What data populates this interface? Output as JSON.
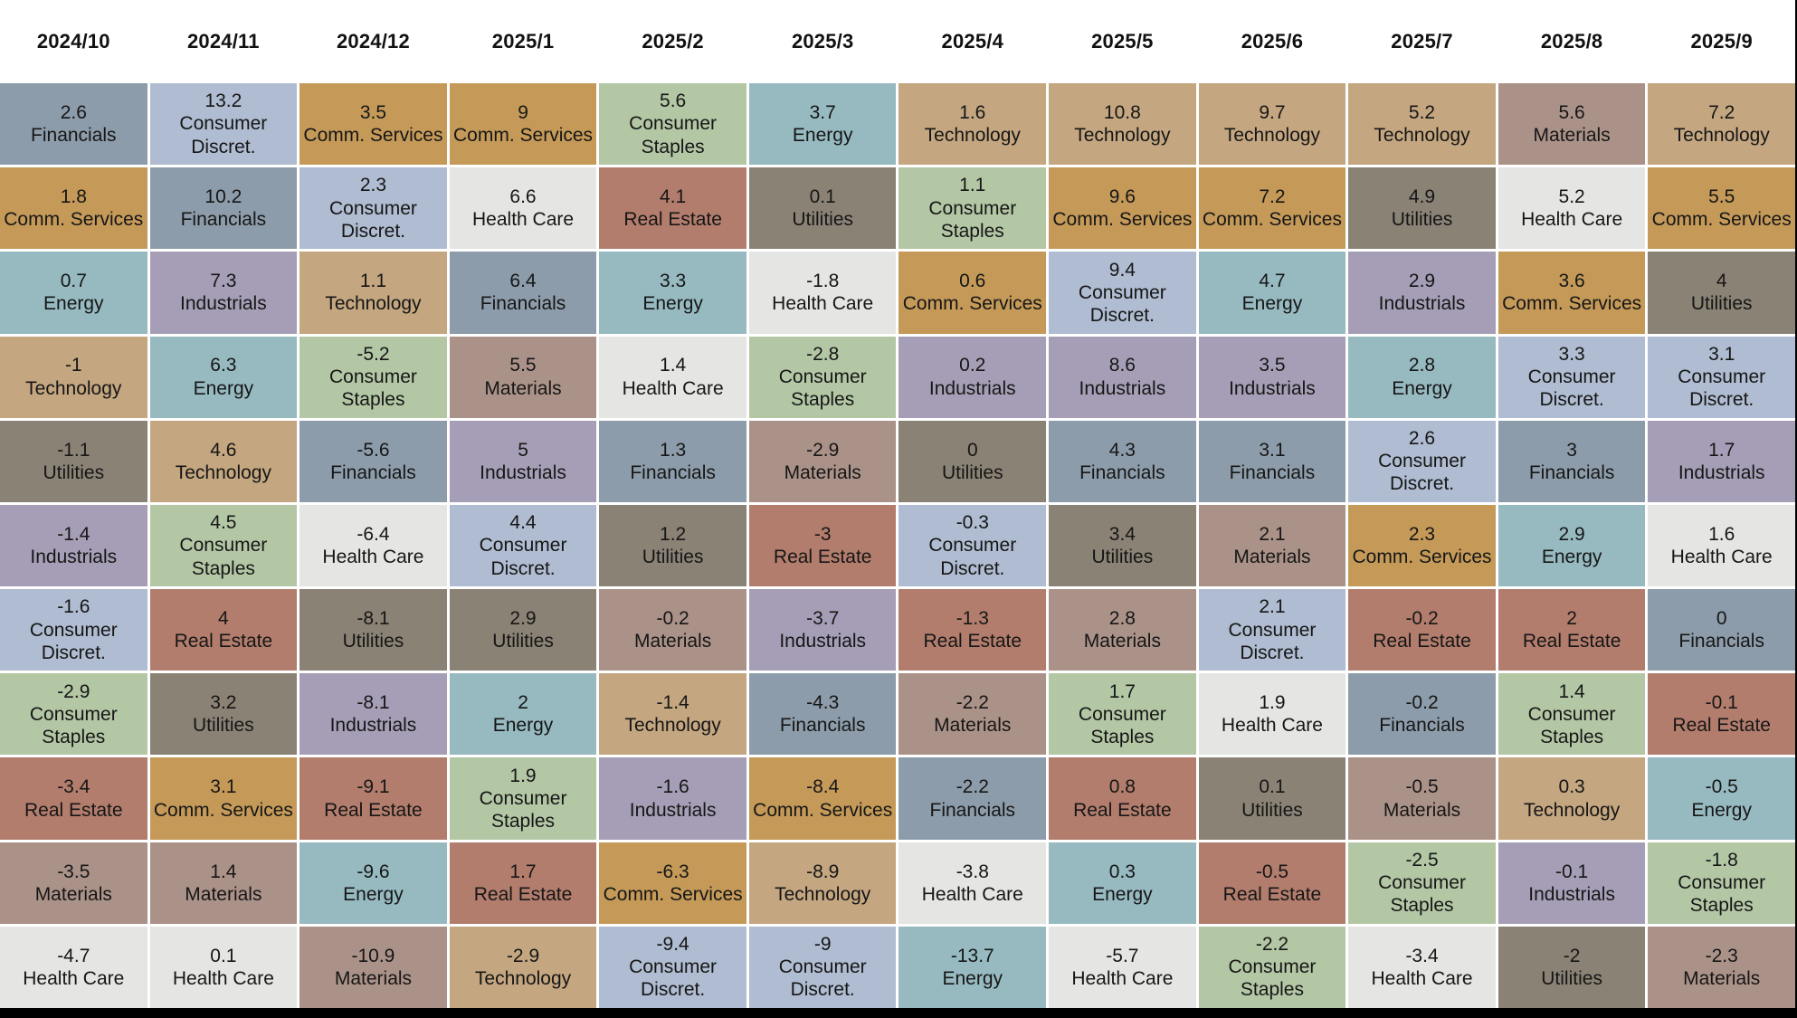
{
  "chart_data": {
    "type": "heatmap",
    "title": "",
    "categories": [
      "2024/10",
      "2024/11",
      "2024/12",
      "2025/1",
      "2025/2",
      "2025/3",
      "2025/4",
      "2025/5",
      "2025/6",
      "2025/7",
      "2025/8",
      "2025/9"
    ],
    "sector_colors": {
      "Financials": "#8d9caa",
      "Consumer Discret.": "#afbcd1",
      "Comm. Services": "#c59a59",
      "Health Care": "#e5e5e3",
      "Real Estate": "#b27d6d",
      "Utilities": "#8a8275",
      "Energy": "#97bac1",
      "Industrials": "#a69eb6",
      "Technology": "#c4a680",
      "Consumer Staples": "#b3c7a5",
      "Materials": "#ab9289"
    },
    "columns": [
      {
        "month": "2024/10",
        "ranking": [
          {
            "value": 2.6,
            "sector": "Financials"
          },
          {
            "value": 1.8,
            "sector": "Comm. Services"
          },
          {
            "value": 0.7,
            "sector": "Energy"
          },
          {
            "value": -1,
            "sector": "Technology"
          },
          {
            "value": -1.1,
            "sector": "Utilities"
          },
          {
            "value": -1.4,
            "sector": "Industrials"
          },
          {
            "value": -1.6,
            "sector": "Consumer Discret."
          },
          {
            "value": -2.9,
            "sector": "Consumer Staples"
          },
          {
            "value": -3.4,
            "sector": "Real Estate"
          },
          {
            "value": -3.5,
            "sector": "Materials"
          },
          {
            "value": -4.7,
            "sector": "Health Care"
          }
        ]
      },
      {
        "month": "2024/11",
        "ranking": [
          {
            "value": 13.2,
            "sector": "Consumer Discret."
          },
          {
            "value": 10.2,
            "sector": "Financials"
          },
          {
            "value": 7.3,
            "sector": "Industrials"
          },
          {
            "value": 6.3,
            "sector": "Energy"
          },
          {
            "value": 4.6,
            "sector": "Technology"
          },
          {
            "value": 4.5,
            "sector": "Consumer Staples"
          },
          {
            "value": 4,
            "sector": "Real Estate"
          },
          {
            "value": 3.2,
            "sector": "Utilities"
          },
          {
            "value": 3.1,
            "sector": "Comm. Services"
          },
          {
            "value": 1.4,
            "sector": "Materials"
          },
          {
            "value": 0.1,
            "sector": "Health Care"
          }
        ]
      },
      {
        "month": "2024/12",
        "ranking": [
          {
            "value": 3.5,
            "sector": "Comm. Services"
          },
          {
            "value": 2.3,
            "sector": "Consumer Discret."
          },
          {
            "value": 1.1,
            "sector": "Technology"
          },
          {
            "value": -5.2,
            "sector": "Consumer Staples"
          },
          {
            "value": -5.6,
            "sector": "Financials"
          },
          {
            "value": -6.4,
            "sector": "Health Care"
          },
          {
            "value": -8.1,
            "sector": "Utilities"
          },
          {
            "value": -8.1,
            "sector": "Industrials"
          },
          {
            "value": -9.1,
            "sector": "Real Estate"
          },
          {
            "value": -9.6,
            "sector": "Energy"
          },
          {
            "value": -10.9,
            "sector": "Materials"
          }
        ]
      },
      {
        "month": "2025/1",
        "ranking": [
          {
            "value": 9,
            "sector": "Comm. Services"
          },
          {
            "value": 6.6,
            "sector": "Health Care"
          },
          {
            "value": 6.4,
            "sector": "Financials"
          },
          {
            "value": 5.5,
            "sector": "Materials"
          },
          {
            "value": 5,
            "sector": "Industrials"
          },
          {
            "value": 4.4,
            "sector": "Consumer Discret."
          },
          {
            "value": 2.9,
            "sector": "Utilities"
          },
          {
            "value": 2,
            "sector": "Energy"
          },
          {
            "value": 1.9,
            "sector": "Consumer Staples"
          },
          {
            "value": 1.7,
            "sector": "Real Estate"
          },
          {
            "value": -2.9,
            "sector": "Technology"
          }
        ]
      },
      {
        "month": "2025/2",
        "ranking": [
          {
            "value": 5.6,
            "sector": "Consumer Staples"
          },
          {
            "value": 4.1,
            "sector": "Real Estate"
          },
          {
            "value": 3.3,
            "sector": "Energy"
          },
          {
            "value": 1.4,
            "sector": "Health Care"
          },
          {
            "value": 1.3,
            "sector": "Financials"
          },
          {
            "value": 1.2,
            "sector": "Utilities"
          },
          {
            "value": -0.2,
            "sector": "Materials"
          },
          {
            "value": -1.4,
            "sector": "Technology"
          },
          {
            "value": -1.6,
            "sector": "Industrials"
          },
          {
            "value": -6.3,
            "sector": "Comm. Services"
          },
          {
            "value": -9.4,
            "sector": "Consumer Discret."
          }
        ]
      },
      {
        "month": "2025/3",
        "ranking": [
          {
            "value": 3.7,
            "sector": "Energy"
          },
          {
            "value": 0.1,
            "sector": "Utilities"
          },
          {
            "value": -1.8,
            "sector": "Health Care"
          },
          {
            "value": -2.8,
            "sector": "Consumer Staples"
          },
          {
            "value": -2.9,
            "sector": "Materials"
          },
          {
            "value": -3,
            "sector": "Real Estate"
          },
          {
            "value": -3.7,
            "sector": "Industrials"
          },
          {
            "value": -4.3,
            "sector": "Financials"
          },
          {
            "value": -8.4,
            "sector": "Comm. Services"
          },
          {
            "value": -8.9,
            "sector": "Technology"
          },
          {
            "value": -9,
            "sector": "Consumer Discret."
          }
        ]
      },
      {
        "month": "2025/4",
        "ranking": [
          {
            "value": 1.6,
            "sector": "Technology"
          },
          {
            "value": 1.1,
            "sector": "Consumer Staples"
          },
          {
            "value": 0.6,
            "sector": "Comm. Services"
          },
          {
            "value": 0.2,
            "sector": "Industrials"
          },
          {
            "value": 0,
            "sector": "Utilities"
          },
          {
            "value": -0.3,
            "sector": "Consumer Discret."
          },
          {
            "value": -1.3,
            "sector": "Real Estate"
          },
          {
            "value": -2.2,
            "sector": "Materials"
          },
          {
            "value": -2.2,
            "sector": "Financials"
          },
          {
            "value": -3.8,
            "sector": "Health Care"
          },
          {
            "value": -13.7,
            "sector": "Energy"
          }
        ]
      },
      {
        "month": "2025/5",
        "ranking": [
          {
            "value": 10.8,
            "sector": "Technology"
          },
          {
            "value": 9.6,
            "sector": "Comm. Services"
          },
          {
            "value": 9.4,
            "sector": "Consumer Discret."
          },
          {
            "value": 8.6,
            "sector": "Industrials"
          },
          {
            "value": 4.3,
            "sector": "Financials"
          },
          {
            "value": 3.4,
            "sector": "Utilities"
          },
          {
            "value": 2.8,
            "sector": "Materials"
          },
          {
            "value": 1.7,
            "sector": "Consumer Staples"
          },
          {
            "value": 0.8,
            "sector": "Real Estate"
          },
          {
            "value": 0.3,
            "sector": "Energy"
          },
          {
            "value": -5.7,
            "sector": "Health Care"
          }
        ]
      },
      {
        "month": "2025/6",
        "ranking": [
          {
            "value": 9.7,
            "sector": "Technology"
          },
          {
            "value": 7.2,
            "sector": "Comm. Services"
          },
          {
            "value": 4.7,
            "sector": "Energy"
          },
          {
            "value": 3.5,
            "sector": "Industrials"
          },
          {
            "value": 3.1,
            "sector": "Financials"
          },
          {
            "value": 2.1,
            "sector": "Materials"
          },
          {
            "value": 2.1,
            "sector": "Consumer Discret."
          },
          {
            "value": 1.9,
            "sector": "Health Care"
          },
          {
            "value": 0.1,
            "sector": "Utilities"
          },
          {
            "value": -0.5,
            "sector": "Real Estate"
          },
          {
            "value": -2.2,
            "sector": "Consumer Staples"
          }
        ]
      },
      {
        "month": "2025/7",
        "ranking": [
          {
            "value": 5.2,
            "sector": "Technology"
          },
          {
            "value": 4.9,
            "sector": "Utilities"
          },
          {
            "value": 2.9,
            "sector": "Industrials"
          },
          {
            "value": 2.8,
            "sector": "Energy"
          },
          {
            "value": 2.6,
            "sector": "Consumer Discret."
          },
          {
            "value": 2.3,
            "sector": "Comm. Services"
          },
          {
            "value": -0.2,
            "sector": "Real Estate"
          },
          {
            "value": -0.2,
            "sector": "Financials"
          },
          {
            "value": -0.5,
            "sector": "Materials"
          },
          {
            "value": -2.5,
            "sector": "Consumer Staples"
          },
          {
            "value": -3.4,
            "sector": "Health Care"
          }
        ]
      },
      {
        "month": "2025/8",
        "ranking": [
          {
            "value": 5.6,
            "sector": "Materials"
          },
          {
            "value": 5.2,
            "sector": "Health Care"
          },
          {
            "value": 3.6,
            "sector": "Comm. Services"
          },
          {
            "value": 3.3,
            "sector": "Consumer Discret."
          },
          {
            "value": 3,
            "sector": "Financials"
          },
          {
            "value": 2.9,
            "sector": "Energy"
          },
          {
            "value": 2,
            "sector": "Real Estate"
          },
          {
            "value": 1.4,
            "sector": "Consumer Staples"
          },
          {
            "value": 0.3,
            "sector": "Technology"
          },
          {
            "value": -0.1,
            "sector": "Industrials"
          },
          {
            "value": -2,
            "sector": "Utilities"
          }
        ]
      },
      {
        "month": "2025/9",
        "ranking": [
          {
            "value": 7.2,
            "sector": "Technology"
          },
          {
            "value": 5.5,
            "sector": "Comm. Services"
          },
          {
            "value": 4,
            "sector": "Utilities"
          },
          {
            "value": 3.1,
            "sector": "Consumer Discret."
          },
          {
            "value": 1.7,
            "sector": "Industrials"
          },
          {
            "value": 1.6,
            "sector": "Health Care"
          },
          {
            "value": 0,
            "sector": "Financials"
          },
          {
            "value": -0.1,
            "sector": "Real Estate"
          },
          {
            "value": -0.5,
            "sector": "Energy"
          },
          {
            "value": -1.8,
            "sector": "Consumer Staples"
          },
          {
            "value": -2.3,
            "sector": "Materials"
          }
        ]
      }
    ]
  }
}
